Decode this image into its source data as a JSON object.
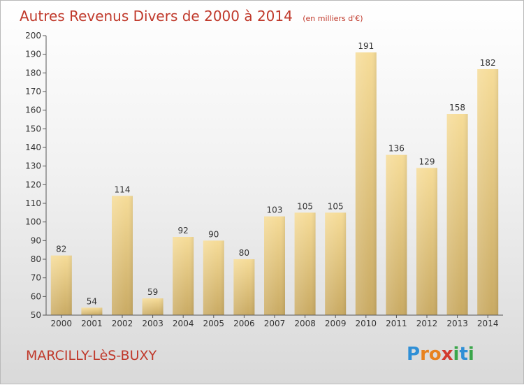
{
  "chart_data": {
    "type": "bar",
    "title": "Autres Revenus Divers de 2000 à 2014",
    "subtitle": "(en milliers d'€)",
    "categories": [
      "2000",
      "2001",
      "2002",
      "2003",
      "2004",
      "2005",
      "2006",
      "2007",
      "2008",
      "2009",
      "2010",
      "2011",
      "2012",
      "2013",
      "2014"
    ],
    "values": [
      82,
      54,
      114,
      59,
      92,
      90,
      80,
      103,
      105,
      105,
      191,
      136,
      129,
      158,
      182
    ],
    "xlabel": "",
    "ylabel": "",
    "ylim": [
      50,
      200
    ],
    "yticks": [
      50,
      60,
      70,
      80,
      90,
      100,
      110,
      120,
      130,
      140,
      150,
      160,
      170,
      180,
      190,
      200
    ],
    "grid": false,
    "bar_color": "#e9c97a"
  },
  "footer": {
    "commune": "MARCILLY-LèS-BUXY",
    "logo_letters": [
      {
        "ch": "P",
        "color": "#2f8fd6"
      },
      {
        "ch": "r",
        "color": "#e8821e"
      },
      {
        "ch": "o",
        "color": "#e8821e"
      },
      {
        "ch": "x",
        "color": "#d23b2f"
      },
      {
        "ch": "i",
        "color": "#3aa64a"
      },
      {
        "ch": "t",
        "color": "#2f8fd6"
      },
      {
        "ch": "i",
        "color": "#3aa64a"
      }
    ]
  }
}
